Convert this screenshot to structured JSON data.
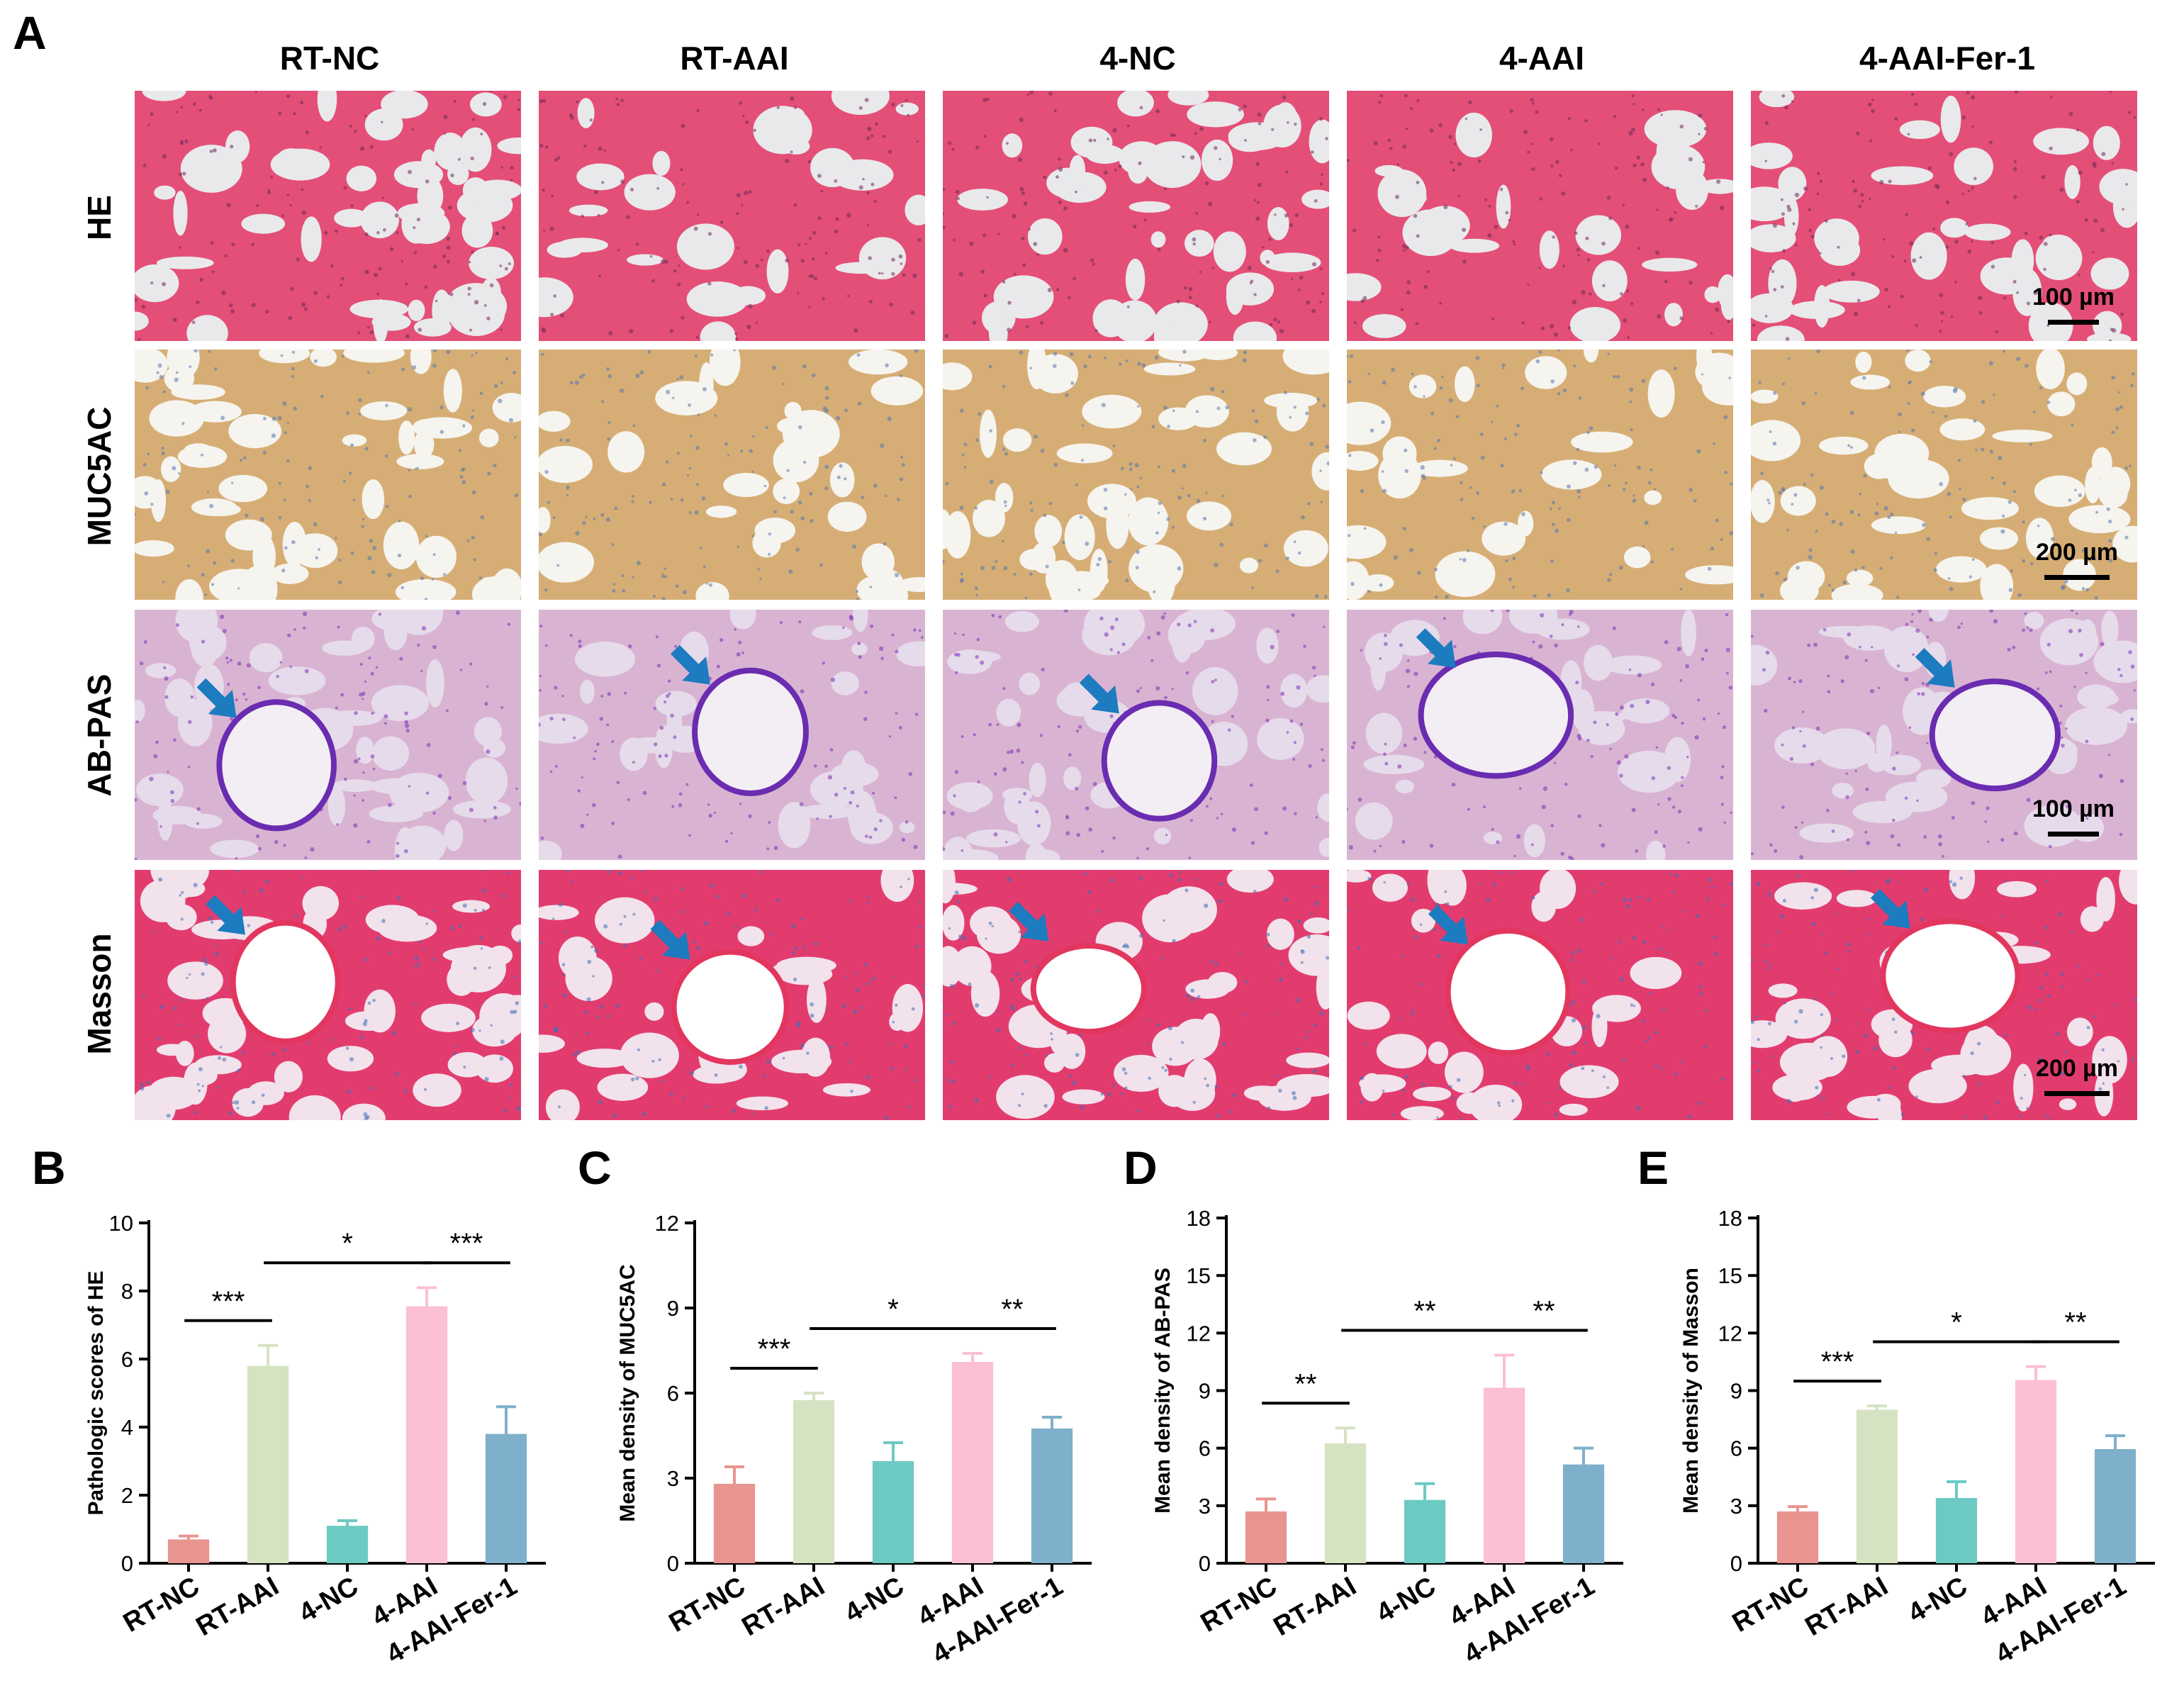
{
  "panel_a": {
    "letter": "A",
    "columns": [
      "RT-NC",
      "RT-AAI",
      "4-NC",
      "4-AAI",
      "4-AAI-Fer-1"
    ],
    "rows": [
      {
        "label": "HE",
        "scale": "100 µm",
        "theme": "he"
      },
      {
        "label": "MUC5AC",
        "scale": "200 µm",
        "theme": "muc"
      },
      {
        "label": "AB-PAS",
        "scale": "100 µm",
        "theme": "abpas"
      },
      {
        "label": "Masson",
        "scale": "200 µm",
        "theme": "masson"
      }
    ],
    "themes": {
      "he": {
        "bg": "#e9e9ec",
        "tissue": "#e44f77",
        "dots": "#6b2a5a"
      },
      "muc": {
        "bg": "#f6f4ef",
        "tissue": "#d6ae75",
        "dots": "#5677ad"
      },
      "abpas": {
        "bg": "#e6dbea",
        "tissue": "#d9b4d2",
        "dots": "#7a2fb6"
      },
      "masson": {
        "bg": "#f2e2ec",
        "tissue": "#e23c6f",
        "dots": "#3e6fb6"
      }
    },
    "arrow_color": "#1d7bbf",
    "arrows_present": {
      "abpas": [
        true,
        true,
        true,
        true,
        true
      ],
      "masson": [
        true,
        true,
        true,
        true,
        true
      ]
    }
  },
  "chart_data": [
    {
      "panel": "B",
      "type": "bar",
      "categories": [
        "RT-NC",
        "RT-AAI",
        "4-NC",
        "4-AAI",
        "4-AAI-Fer-1"
      ],
      "values": [
        0.7,
        5.8,
        1.1,
        7.55,
        3.8
      ],
      "errors": [
        0.1,
        0.6,
        0.15,
        0.55,
        0.8
      ],
      "colors": [
        "#e8948f",
        "#d5e3c2",
        "#6ccac3",
        "#fbbfd6",
        "#7fb0cb"
      ],
      "ylabel": "Pathologic scores of HE",
      "ylim": [
        0,
        10
      ],
      "yticks": [
        0,
        2,
        4,
        6,
        8,
        10
      ],
      "significance": [
        {
          "from": 0,
          "to": 1,
          "label": "***"
        },
        {
          "from": 1,
          "to": 3,
          "label": "*"
        },
        {
          "from": 3,
          "to": 4,
          "label": "***"
        }
      ]
    },
    {
      "panel": "C",
      "type": "bar",
      "categories": [
        "RT-NC",
        "RT-AAI",
        "4-NC",
        "4-AAI",
        "4-AAI-Fer-1"
      ],
      "values": [
        2.8,
        5.75,
        3.6,
        7.1,
        4.75
      ],
      "errors": [
        0.6,
        0.25,
        0.65,
        0.3,
        0.4
      ],
      "colors": [
        "#e8948f",
        "#d5e3c2",
        "#6ccac3",
        "#fbbfd6",
        "#7fb0cb"
      ],
      "ylabel": "Mean density of MUC5AC",
      "ylim": [
        0,
        12
      ],
      "yticks": [
        0,
        3,
        6,
        9,
        12
      ],
      "significance": [
        {
          "from": 0,
          "to": 1,
          "label": "***"
        },
        {
          "from": 1,
          "to": 3,
          "label": "*"
        },
        {
          "from": 3,
          "to": 4,
          "label": "**"
        }
      ]
    },
    {
      "panel": "D",
      "type": "bar",
      "categories": [
        "RT-NC",
        "RT-AAI",
        "4-NC",
        "4-AAI",
        "4-AAI-Fer-1"
      ],
      "values": [
        2.7,
        6.25,
        3.3,
        9.15,
        5.15
      ],
      "errors": [
        0.65,
        0.8,
        0.85,
        1.7,
        0.85
      ],
      "colors": [
        "#e8948f",
        "#d5e3c2",
        "#6ccac3",
        "#fbbfd6",
        "#7fb0cb"
      ],
      "ylabel": "Mean density of AB-PAS",
      "ylim": [
        0,
        18
      ],
      "yticks": [
        0,
        3,
        6,
        9,
        12,
        15,
        18
      ],
      "significance": [
        {
          "from": 0,
          "to": 1,
          "label": "**"
        },
        {
          "from": 1,
          "to": 3,
          "label": "**"
        },
        {
          "from": 3,
          "to": 4,
          "label": "**"
        }
      ]
    },
    {
      "panel": "E",
      "type": "bar",
      "categories": [
        "RT-NC",
        "RT-AAI",
        "4-NC",
        "4-AAI",
        "4-AAI-Fer-1"
      ],
      "values": [
        2.7,
        8.0,
        3.4,
        9.55,
        5.95
      ],
      "errors": [
        0.25,
        0.2,
        0.85,
        0.7,
        0.7
      ],
      "colors": [
        "#e8948f",
        "#d5e3c2",
        "#6ccac3",
        "#fbbfd6",
        "#7fb0cb"
      ],
      "ylabel": "Mean density of Masson",
      "ylim": [
        0,
        18
      ],
      "yticks": [
        0,
        3,
        6,
        9,
        12,
        15,
        18
      ],
      "significance": [
        {
          "from": 0,
          "to": 1,
          "label": "***"
        },
        {
          "from": 1,
          "to": 3,
          "label": "*"
        },
        {
          "from": 3,
          "to": 4,
          "label": "**"
        }
      ]
    }
  ]
}
